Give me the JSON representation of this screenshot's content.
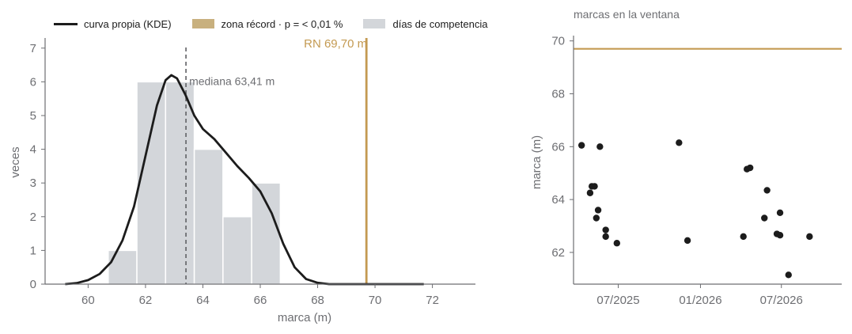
{
  "legend": {
    "kde": "curva propia (KDE)",
    "record_zone": "zona récord · p = < 0,01 %",
    "days": "días de competencia"
  },
  "colors": {
    "ink": "#1c1c1c",
    "gold": "#c49a52",
    "bar": "#d3d6da",
    "axis": "#6d6e72"
  },
  "chart_data": [
    {
      "type": "bar",
      "title": "",
      "xlabel": "marca (m)",
      "ylabel": "veces",
      "xlim": [
        58.5,
        73.5
      ],
      "ylim": [
        0,
        7.3
      ],
      "xticks": [
        60,
        62,
        64,
        66,
        68,
        70,
        72
      ],
      "yticks": [
        0,
        1,
        2,
        3,
        4,
        5,
        6,
        7
      ],
      "bins": [
        {
          "x0": 60.7,
          "x1": 61.7,
          "count": 1
        },
        {
          "x0": 61.7,
          "x1": 62.7,
          "count": 6
        },
        {
          "x0": 62.7,
          "x1": 63.7,
          "count": 6
        },
        {
          "x0": 63.7,
          "x1": 64.7,
          "count": 4
        },
        {
          "x0": 64.7,
          "x1": 65.7,
          "count": 2
        },
        {
          "x0": 65.7,
          "x1": 66.7,
          "count": 3
        }
      ],
      "kde": [
        [
          59.2,
          0.0
        ],
        [
          59.6,
          0.03
        ],
        [
          60.0,
          0.12
        ],
        [
          60.4,
          0.3
        ],
        [
          60.8,
          0.65
        ],
        [
          61.2,
          1.3
        ],
        [
          61.6,
          2.3
        ],
        [
          62.0,
          3.8
        ],
        [
          62.4,
          5.3
        ],
        [
          62.7,
          6.05
        ],
        [
          62.9,
          6.2
        ],
        [
          63.1,
          6.1
        ],
        [
          63.4,
          5.6
        ],
        [
          63.7,
          5.0
        ],
        [
          64.0,
          4.6
        ],
        [
          64.4,
          4.3
        ],
        [
          64.8,
          3.9
        ],
        [
          65.2,
          3.5
        ],
        [
          65.6,
          3.15
        ],
        [
          66.0,
          2.75
        ],
        [
          66.4,
          2.1
        ],
        [
          66.8,
          1.2
        ],
        [
          67.2,
          0.5
        ],
        [
          67.6,
          0.15
        ],
        [
          68.0,
          0.04
        ],
        [
          68.4,
          0.0
        ],
        [
          70.0,
          0.0
        ],
        [
          71.7,
          0.0
        ]
      ],
      "median": 63.41,
      "median_label": "mediana 63,41 m",
      "record": 69.7,
      "record_label": "RN 69,70 m"
    },
    {
      "type": "scatter",
      "title": "marcas en la ventana",
      "xlabel": "",
      "ylabel": "marca (m)",
      "xlim": [
        "2025-03-23",
        "2026-11-13"
      ],
      "ylim": [
        60.8,
        70.2
      ],
      "xticks": [
        {
          "date": "2025-07-01",
          "label": "07/2025"
        },
        {
          "date": "2026-01-01",
          "label": "01/2026"
        },
        {
          "date": "2026-07-01",
          "label": "07/2026"
        }
      ],
      "yticks": [
        62,
        64,
        66,
        68,
        70
      ],
      "record": 69.7,
      "points": [
        {
          "x": "2025-04-10",
          "y": 66.05
        },
        {
          "x": "2025-04-29",
          "y": 64.25
        },
        {
          "x": "2025-05-03",
          "y": 64.5
        },
        {
          "x": "2025-05-09",
          "y": 64.5
        },
        {
          "x": "2025-05-13",
          "y": 63.3
        },
        {
          "x": "2025-05-17",
          "y": 63.6
        },
        {
          "x": "2025-05-21",
          "y": 66.0
        },
        {
          "x": "2025-06-03",
          "y": 62.85
        },
        {
          "x": "2025-06-03",
          "y": 62.6
        },
        {
          "x": "2025-06-28",
          "y": 62.35
        },
        {
          "x": "2025-11-14",
          "y": 66.15
        },
        {
          "x": "2025-12-03",
          "y": 62.45
        },
        {
          "x": "2026-04-07",
          "y": 62.6
        },
        {
          "x": "2026-04-15",
          "y": 65.15
        },
        {
          "x": "2026-04-22",
          "y": 65.2
        },
        {
          "x": "2026-05-24",
          "y": 63.3
        },
        {
          "x": "2026-05-30",
          "y": 64.35
        },
        {
          "x": "2026-06-21",
          "y": 62.7
        },
        {
          "x": "2026-06-28",
          "y": 63.5
        },
        {
          "x": "2026-06-28",
          "y": 62.65
        },
        {
          "x": "2026-07-17",
          "y": 61.15
        },
        {
          "x": "2026-09-02",
          "y": 62.6
        }
      ]
    }
  ]
}
